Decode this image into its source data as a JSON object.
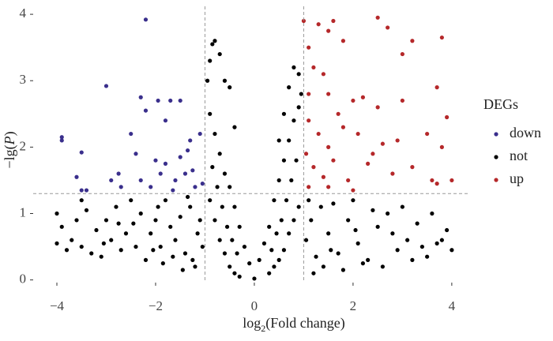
{
  "chart_data": {
    "type": "scatter",
    "x_label_parts": [
      "log",
      "2",
      "(Fold change)"
    ],
    "y_label_parts": [
      "−lg(",
      "P",
      ")"
    ],
    "xlim": [
      -4.48,
      4.37
    ],
    "ylim": [
      -0.04,
      4.12
    ],
    "xticks": [
      {
        "value": -4,
        "label": "−4"
      },
      {
        "value": -2,
        "label": "−2"
      },
      0,
      2,
      4
    ],
    "yticks": [
      0,
      1,
      2,
      3,
      4
    ],
    "thresholds": {
      "x": [
        -1,
        1
      ],
      "y": 1.3
    },
    "legend_title": "DEGs",
    "legend_position": "right",
    "series": [
      {
        "name": "down",
        "color": "#3a2f8c",
        "x": [
          -3.9,
          -3.9,
          -3.0,
          -2.2,
          -2.3,
          -2.2,
          -3.5,
          -3.6,
          -3.4,
          -3.5,
          -2.9,
          -2.7,
          -2.4,
          -2.5,
          -2.0,
          -1.7,
          -1.5,
          -1.8,
          -1.3,
          -1.1,
          -1.9,
          -1.6,
          -1.4,
          -1.2,
          -2.3,
          -2.1,
          -1.8,
          -1.5,
          -1.25,
          -1.05,
          -1.95,
          -2.75,
          -1.35,
          -1.65
        ],
        "y": [
          2.1,
          2.15,
          2.92,
          3.92,
          2.75,
          2.55,
          1.92,
          1.55,
          1.35,
          1.35,
          1.5,
          1.4,
          1.9,
          2.2,
          1.8,
          2.7,
          2.7,
          2.4,
          2.1,
          2.2,
          1.6,
          1.5,
          1.6,
          1.4,
          1.5,
          1.4,
          1.75,
          1.85,
          1.65,
          1.45,
          2.7,
          1.6,
          1.95,
          1.35
        ]
      },
      {
        "name": "not",
        "color": "#000000",
        "x": [
          -0.9,
          -0.8,
          -0.7,
          -0.6,
          -0.5,
          -0.4,
          -0.3,
          -0.2,
          -0.1,
          0,
          0.1,
          0.2,
          0.3,
          0.4,
          0.5,
          0.6,
          0.7,
          0.8,
          0.9,
          -0.9,
          -0.8,
          -0.7,
          -0.6,
          -0.5,
          -0.4,
          -0.3,
          0.3,
          0.4,
          0.5,
          0.6,
          0.7,
          0.8,
          0.9,
          -0.85,
          -0.75,
          -0.65,
          -0.55,
          -0.45,
          -0.35,
          0.35,
          0.45,
          0.55,
          0.65,
          0.75,
          0.85,
          -0.95,
          -0.9,
          -0.85,
          -0.8,
          -0.7,
          -0.6,
          -0.5,
          -0.4,
          0.6,
          0.7,
          0.8,
          0.9,
          0.95,
          0.5,
          -4.0,
          -3.9,
          -3.7,
          -3.5,
          -3.3,
          -3.1,
          -3.0,
          -2.8,
          -2.6,
          -2.4,
          -2.2,
          -2.0,
          -1.8,
          -1.6,
          -1.4,
          -1.2,
          -1.1,
          -1.3,
          -1.5,
          -1.7,
          -1.9,
          -2.1,
          -2.3,
          -2.5,
          -2.7,
          -2.9,
          -3.2,
          -3.4,
          -3.6,
          -3.8,
          -1.05,
          -1.15,
          -1.25,
          -1.45,
          -1.65,
          -1.85,
          -2.05,
          -2.45,
          -2.75,
          -3.05,
          -1.35,
          -1.95,
          -3.5,
          -4.0,
          1.05,
          1.15,
          1.25,
          1.35,
          1.5,
          1.7,
          1.9,
          2.1,
          2.3,
          2.5,
          2.7,
          2.9,
          3.1,
          3.3,
          3.5,
          3.7,
          3.9,
          4.0,
          1.1,
          1.6,
          2.0,
          2.4,
          3.0,
          3.6,
          3.8,
          1.4,
          1.8,
          2.2,
          2.6,
          3.2,
          1.2,
          2.8,
          3.4,
          1.55,
          2.05
        ],
        "y": [
          2.5,
          2.2,
          1.9,
          1.6,
          1.4,
          1.1,
          0.8,
          0.5,
          0.25,
          0.02,
          0.3,
          0.55,
          0.8,
          1.2,
          1.5,
          1.8,
          2.1,
          2.4,
          2.6,
          1.2,
          0.9,
          0.6,
          0.4,
          0.2,
          0.1,
          0.05,
          0.1,
          0.2,
          0.3,
          0.45,
          0.7,
          0.9,
          1.1,
          1.7,
          1.4,
          1.1,
          0.8,
          0.6,
          0.4,
          0.45,
          0.7,
          0.9,
          1.2,
          1.5,
          1.8,
          3.0,
          3.3,
          3.55,
          3.6,
          3.4,
          3.0,
          2.9,
          2.3,
          2.5,
          2.9,
          3.2,
          3.1,
          2.8,
          2.1,
          1.0,
          0.8,
          0.6,
          0.5,
          0.4,
          0.35,
          0.9,
          1.1,
          0.7,
          0.5,
          0.3,
          0.9,
          1.2,
          0.6,
          0.4,
          0.2,
          0.9,
          1.1,
          0.95,
          0.8,
          0.5,
          0.7,
          1.0,
          1.2,
          0.45,
          0.6,
          0.75,
          1.05,
          0.9,
          0.45,
          0.5,
          0.7,
          0.3,
          0.15,
          0.35,
          0.25,
          0.45,
          0.85,
          0.85,
          0.55,
          1.25,
          1.1,
          1.2,
          0.55,
          0.6,
          0.9,
          0.35,
          1.1,
          0.7,
          0.4,
          0.9,
          0.55,
          0.3,
          0.8,
          1.0,
          0.45,
          0.6,
          0.85,
          0.35,
          0.55,
          0.75,
          0.45,
          1.2,
          1.15,
          1.2,
          1.05,
          1.1,
          1.0,
          0.6,
          0.2,
          0.15,
          0.25,
          0.2,
          0.3,
          0.1,
          0.7,
          0.5,
          0.45,
          0.75
        ]
      },
      {
        "name": "up",
        "color": "#b5282a",
        "x": [
          1.0,
          1.1,
          1.3,
          1.5,
          1.6,
          1.8,
          2.5,
          2.7,
          3.0,
          3.2,
          3.8,
          1.2,
          1.4,
          1.1,
          1.5,
          1.7,
          2.0,
          2.2,
          2.5,
          3.0,
          3.7,
          3.9,
          1.1,
          1.3,
          1.5,
          1.8,
          2.1,
          2.6,
          2.9,
          3.5,
          3.8,
          1.05,
          1.2,
          1.4,
          1.6,
          1.9,
          2.3,
          2.8,
          3.2,
          3.6,
          4.0,
          1.1,
          1.5,
          2.0,
          3.7,
          2.4
        ],
        "y": [
          3.9,
          3.5,
          3.85,
          3.75,
          3.9,
          3.6,
          3.95,
          3.8,
          3.4,
          3.6,
          3.65,
          3.2,
          3.1,
          2.8,
          2.8,
          2.5,
          2.7,
          2.75,
          2.6,
          2.7,
          2.9,
          2.45,
          2.4,
          2.2,
          2.0,
          2.3,
          2.2,
          2.05,
          2.1,
          2.2,
          2.0,
          1.9,
          1.7,
          1.55,
          1.8,
          1.5,
          1.75,
          1.6,
          1.7,
          1.5,
          1.5,
          1.4,
          1.4,
          1.35,
          1.45,
          1.9
        ]
      }
    ]
  }
}
